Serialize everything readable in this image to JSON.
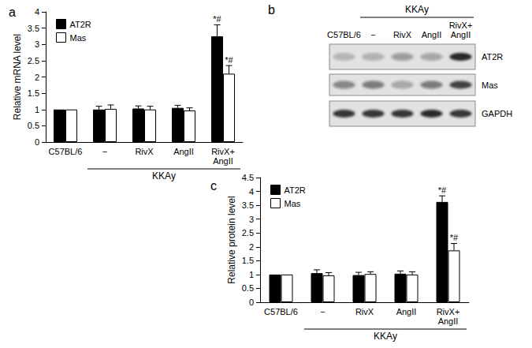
{
  "chart_data": [
    {
      "type": "bar",
      "title": "a",
      "categories": [
        "C57BL/6",
        "−",
        "RivX",
        "AngII",
        "RivX+\nAngII"
      ],
      "series": [
        {
          "name": "AT2R",
          "color": "#000000",
          "values": [
            1,
            1.0,
            1.03,
            1.05,
            3.25
          ],
          "errors": [
            0,
            0.1,
            0.08,
            0.08,
            0.35
          ]
        },
        {
          "name": "Mas",
          "color": "#ffffff",
          "values": [
            1,
            1.02,
            1.0,
            0.97,
            2.1
          ],
          "errors": [
            0,
            0.12,
            0.1,
            0.08,
            0.25
          ]
        }
      ],
      "ylabel": "Relative mRNA level",
      "ylim": [
        0,
        4
      ],
      "yticks": [
        0,
        0.5,
        1,
        1.5,
        2,
        2.5,
        3,
        3.5,
        4
      ],
      "grid": false,
      "legend": "upper left",
      "annotations": [
        {
          "text": "*#",
          "series": "AT2R",
          "category": "RivX+\nAngII"
        },
        {
          "text": "*#",
          "series": "Mas",
          "category": "RivX+\nAngII"
        },
        {
          "text": "KKAy",
          "from": "−",
          "to": "RivX+\nAngII"
        }
      ]
    },
    {
      "type": "bar",
      "title": "c",
      "categories": [
        "C57BL/6",
        "−",
        "RivX",
        "AngII",
        "RivX+\nAngII"
      ],
      "series": [
        {
          "name": "AT2R",
          "color": "#000000",
          "values": [
            1,
            1.05,
            0.98,
            1.03,
            3.62
          ],
          "errors": [
            0,
            0.12,
            0.1,
            0.1,
            0.22
          ]
        },
        {
          "name": "Mas",
          "color": "#ffffff",
          "values": [
            1,
            0.97,
            1.02,
            1.0,
            1.87
          ],
          "errors": [
            0,
            0.1,
            0.08,
            0.1,
            0.25
          ]
        }
      ],
      "ylabel": "Relative protein level",
      "ylim": [
        0,
        4.5
      ],
      "yticks": [
        0,
        0.5,
        1,
        1.5,
        2,
        2.5,
        3,
        3.5,
        4,
        4.5
      ],
      "grid": false,
      "legend": "upper left",
      "annotations": [
        {
          "text": "*#",
          "series": "AT2R",
          "category": "RivX+\nAngII"
        },
        {
          "text": "*#",
          "series": "Mas",
          "category": "RivX+\nAngII"
        },
        {
          "text": "KKAy",
          "from": "−",
          "to": "RivX+\nAngII"
        }
      ]
    }
  ],
  "blot": {
    "title": "b",
    "lanes": [
      "C57BL/6",
      "−",
      "RivX",
      "AngII",
      "RivX+\nAngII"
    ],
    "group": {
      "text": "KKAy",
      "from": "−",
      "to": "RivX+\nAngII"
    },
    "rows": [
      {
        "name": "AT2R",
        "bands": [
          0.2,
          0.25,
          0.35,
          0.3,
          0.95
        ]
      },
      {
        "name": "Mas",
        "bands": [
          0.45,
          0.5,
          0.3,
          0.5,
          0.8
        ]
      },
      {
        "name": "GAPDH",
        "bands": [
          0.85,
          0.85,
          0.85,
          0.9,
          0.85
        ]
      }
    ]
  }
}
